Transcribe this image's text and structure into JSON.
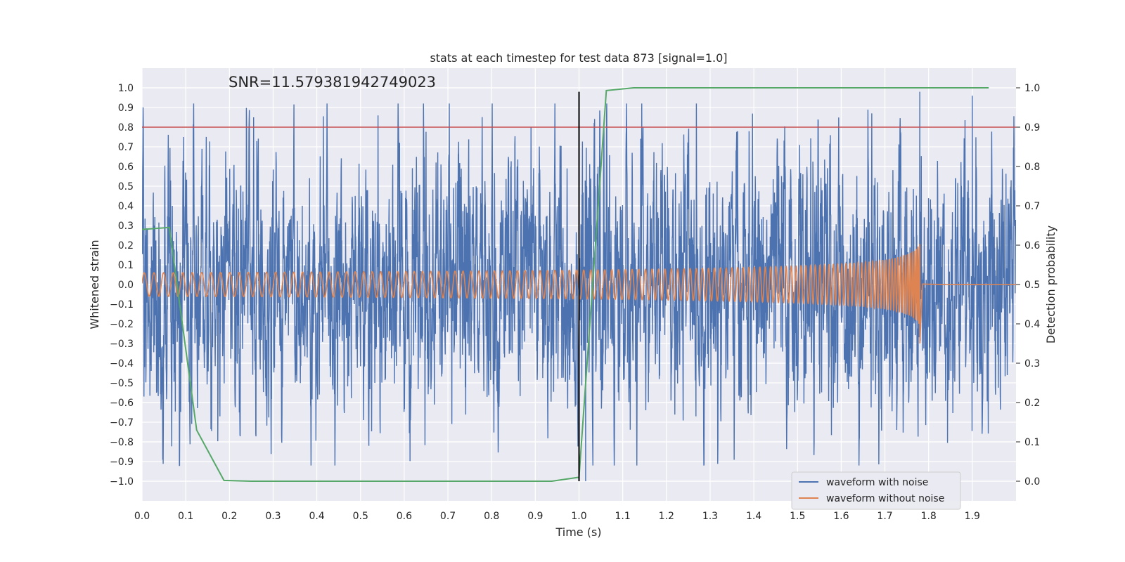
{
  "chart_data": {
    "type": "line",
    "title": "stats at each timestep for test data 873 [signal=1.0]",
    "xlabel": "Time (s)",
    "ylabel": "Whitened strain",
    "ylabel_right": "Detection probability",
    "annotation": "SNR=11.579381942749023",
    "xlim": [
      0.0,
      2.0
    ],
    "ylim": [
      -1.1,
      1.1
    ],
    "ylim_right": [
      -0.05,
      1.05
    ],
    "x_ticks": [
      "0.0",
      "0.1",
      "0.2",
      "0.3",
      "0.4",
      "0.5",
      "0.6",
      "0.7",
      "0.8",
      "0.9",
      "1.0",
      "1.1",
      "1.2",
      "1.3",
      "1.4",
      "1.5",
      "1.6",
      "1.7",
      "1.8",
      "1.9"
    ],
    "y_ticks": [
      "1.0",
      "0.9",
      "0.8",
      "0.7",
      "0.6",
      "0.5",
      "0.4",
      "0.3",
      "0.2",
      "0.1",
      "0.0",
      "−0.1",
      "−0.2",
      "−0.3",
      "−0.4",
      "−0.5",
      "−0.6",
      "−0.7",
      "−0.8",
      "−0.9",
      "−1.0"
    ],
    "y_ticks_right": [
      "1.0",
      "0.9",
      "0.8",
      "0.7",
      "0.6",
      "0.5",
      "0.4",
      "0.3",
      "0.2",
      "0.1",
      "0.0"
    ],
    "grid": true,
    "legend_position": "bottom-right",
    "colors": {
      "noisy": "#4c72b0",
      "clean": "#dd8452",
      "probability": "#55a868",
      "threshold": "#c44e52",
      "merger_line": "#000000",
      "background": "#eaeaf2",
      "grid": "#ffffff"
    },
    "series": [
      {
        "name": "waveform with noise",
        "axis": "left",
        "description_values": "noise, sample rate ~2048 Hz, amplitude mostly within ±0.6, extremes near ±1.0",
        "notable_peaks": [
          {
            "x": 0.095,
            "y": 0.75
          },
          {
            "x": 0.54,
            "y": 0.86
          },
          {
            "x": 0.89,
            "y": 0.8
          },
          {
            "x": 1.015,
            "y": -1.0
          },
          {
            "x": 1.67,
            "y": 0.87
          },
          {
            "x": 1.78,
            "y": 0.98
          },
          {
            "x": 1.9,
            "y": 0.96
          }
        ]
      },
      {
        "name": "waveform without noise",
        "axis": "left",
        "description_values": "chirp signal, amplitude ~0.06 at t=0 rising to ~0.28 at merger t=1.78, frequency ~45 Hz rising to ~250 Hz, flat after merger",
        "start_amplitude": 0.06,
        "peak_amplitude": 0.28,
        "merger_time": 1.78
      },
      {
        "name": "detection probability",
        "axis": "right",
        "x": [
          0.0,
          0.0625,
          0.125,
          0.1875,
          0.25,
          0.3125,
          0.375,
          0.4375,
          0.5,
          0.5625,
          0.625,
          0.6875,
          0.75,
          0.8125,
          0.875,
          0.9375,
          1.0,
          1.0625,
          1.125,
          1.1875,
          1.25,
          1.3125,
          1.375,
          1.4375,
          1.5,
          1.5625,
          1.625,
          1.6875,
          1.75,
          1.8125,
          1.875,
          1.9375
        ],
        "values": [
          0.64,
          0.645,
          0.13,
          0.002,
          0.0,
          0.0,
          0.0,
          0.0,
          0.0,
          0.0,
          0.0,
          0.0,
          0.0,
          0.0,
          0.0,
          0.0,
          0.01,
          0.993,
          1.0,
          1.0,
          1.0,
          1.0,
          1.0,
          1.0,
          1.0,
          1.0,
          1.0,
          1.0,
          1.0,
          1.0,
          1.0,
          1.0
        ]
      }
    ],
    "threshold": {
      "axis": "right",
      "value": 0.9
    },
    "vertical_line": {
      "x": 1.0,
      "y_range": [
        -1.0,
        0.98
      ]
    },
    "legend": [
      {
        "label": "waveform with noise",
        "color": "#4c72b0"
      },
      {
        "label": "waveform without noise",
        "color": "#dd8452"
      }
    ]
  }
}
